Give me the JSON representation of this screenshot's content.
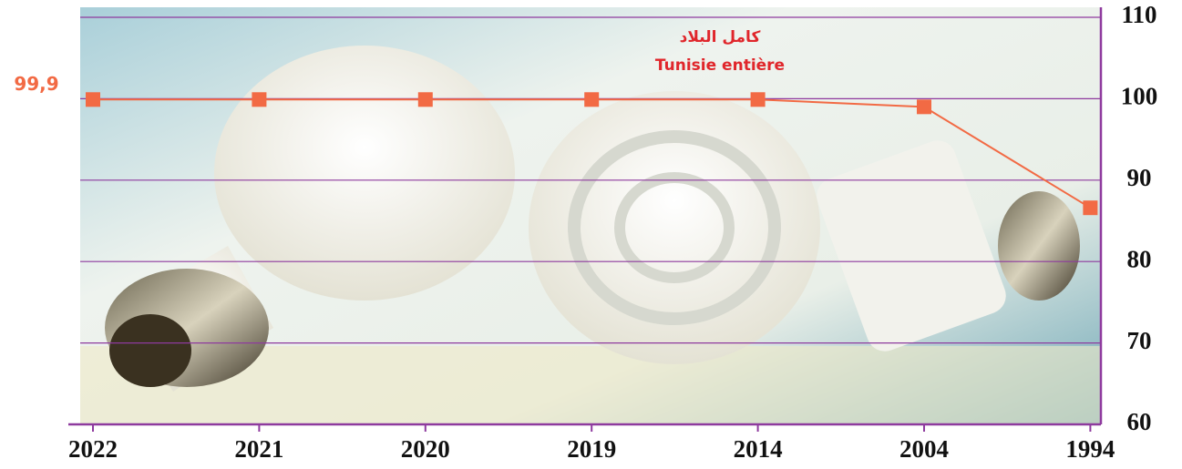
{
  "chart_data": {
    "type": "line",
    "annotations": [
      "كامل البلاد",
      "Tunisie entière"
    ],
    "categories": [
      "2022",
      "2021",
      "2020",
      "2019",
      "2014",
      "2004",
      "1994"
    ],
    "series": [
      {
        "color": "#f26a44",
        "values": [
          99.9,
          99.9,
          99.9,
          99.9,
          99.9,
          99.0,
          86.6
        ],
        "value_labels": [
          "99,9",
          null,
          null,
          null,
          null,
          null,
          null
        ]
      }
    ],
    "ylim": [
      60,
      110
    ],
    "yticks": [
      60,
      70,
      80,
      90,
      100,
      110
    ],
    "grid": true,
    "grid_color": "#8e3a9e"
  }
}
